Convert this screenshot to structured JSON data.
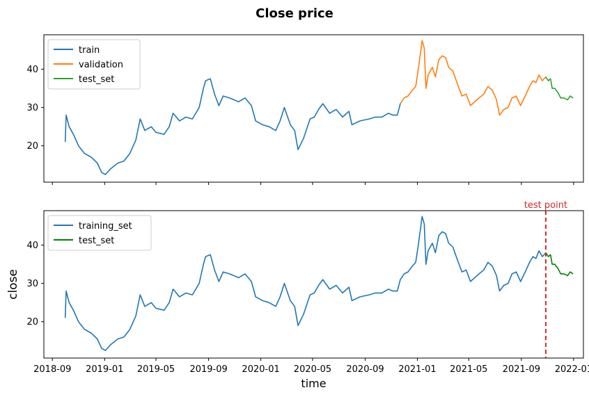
{
  "figure": {
    "title": "Close price"
  },
  "chart_data": [
    {
      "type": "line",
      "title": "",
      "xlabel": "",
      "ylabel": "",
      "x_ticks": [
        "2018-09",
        "2019-01",
        "2019-05",
        "2019-09",
        "2020-01",
        "2020-05",
        "2020-09",
        "2021-01",
        "2021-05",
        "2021-09",
        "2022-01"
      ],
      "x_tick_labels_visible": false,
      "ylim": [
        10.5,
        49
      ],
      "y_ticks": [
        20,
        30,
        40
      ],
      "legend": "top-left",
      "series": [
        {
          "name": "train",
          "color": "#1f77b4",
          "points": [
            [
              "2018-10-01",
              21.0
            ],
            [
              "2018-10-03",
              28.0
            ],
            [
              "2018-10-10",
              25.0
            ],
            [
              "2018-10-20",
              23.0
            ],
            [
              "2018-11-01",
              20.0
            ],
            [
              "2018-11-15",
              18.0
            ],
            [
              "2018-12-01",
              17.0
            ],
            [
              "2018-12-15",
              15.5
            ],
            [
              "2018-12-25",
              13.0
            ],
            [
              "2019-01-03",
              12.5
            ],
            [
              "2019-01-15",
              14.0
            ],
            [
              "2019-02-01",
              15.5
            ],
            [
              "2019-02-15",
              16.0
            ],
            [
              "2019-03-01",
              18.0
            ],
            [
              "2019-03-15",
              21.5
            ],
            [
              "2019-03-25",
              27.0
            ],
            [
              "2019-04-05",
              24.0
            ],
            [
              "2019-04-20",
              25.0
            ],
            [
              "2019-05-01",
              23.5
            ],
            [
              "2019-05-20",
              23.0
            ],
            [
              "2019-06-01",
              25.0
            ],
            [
              "2019-06-10",
              28.5
            ],
            [
              "2019-06-25",
              26.5
            ],
            [
              "2019-07-10",
              27.5
            ],
            [
              "2019-07-25",
              27.0
            ],
            [
              "2019-08-10",
              30.0
            ],
            [
              "2019-08-20",
              35.0
            ],
            [
              "2019-08-25",
              37.0
            ],
            [
              "2019-09-05",
              37.5
            ],
            [
              "2019-09-15",
              33.5
            ],
            [
              "2019-09-25",
              30.5
            ],
            [
              "2019-10-05",
              33.0
            ],
            [
              "2019-10-20",
              32.5
            ],
            [
              "2019-11-10",
              31.5
            ],
            [
              "2019-11-25",
              32.5
            ],
            [
              "2019-12-10",
              30.5
            ],
            [
              "2019-12-20",
              26.5
            ],
            [
              "2020-01-05",
              25.5
            ],
            [
              "2020-01-20",
              25.0
            ],
            [
              "2020-02-05",
              24.0
            ],
            [
              "2020-02-15",
              26.5
            ],
            [
              "2020-02-25",
              30.0
            ],
            [
              "2020-03-10",
              25.5
            ],
            [
              "2020-03-20",
              24.0
            ],
            [
              "2020-03-28",
              19.0
            ],
            [
              "2020-04-10",
              22.0
            ],
            [
              "2020-04-25",
              27.0
            ],
            [
              "2020-05-05",
              27.5
            ],
            [
              "2020-05-15",
              29.5
            ],
            [
              "2020-05-25",
              31.0
            ],
            [
              "2020-06-10",
              28.5
            ],
            [
              "2020-06-25",
              29.5
            ],
            [
              "2020-07-10",
              27.5
            ],
            [
              "2020-07-25",
              29.0
            ],
            [
              "2020-08-01",
              25.5
            ],
            [
              "2020-08-20",
              26.5
            ],
            [
              "2020-09-10",
              27.0
            ],
            [
              "2020-09-25",
              27.5
            ],
            [
              "2020-10-10",
              27.5
            ],
            [
              "2020-10-25",
              28.5
            ],
            [
              "2020-11-05",
              28.0
            ],
            [
              "2020-11-15",
              28.0
            ],
            [
              "2020-11-22",
              31.0
            ]
          ]
        },
        {
          "name": "validation",
          "color": "#ff7f0e",
          "points": [
            [
              "2020-11-22",
              31.0
            ],
            [
              "2020-12-01",
              32.5
            ],
            [
              "2020-12-10",
              33.0
            ],
            [
              "2020-12-20",
              34.5
            ],
            [
              "2020-12-28",
              35.5
            ],
            [
              "2021-01-03",
              40.0
            ],
            [
              "2021-01-08",
              44.0
            ],
            [
              "2021-01-12",
              47.5
            ],
            [
              "2021-01-17",
              45.5
            ],
            [
              "2021-01-21",
              35.0
            ],
            [
              "2021-01-26",
              38.5
            ],
            [
              "2021-02-05",
              40.5
            ],
            [
              "2021-02-12",
              38.0
            ],
            [
              "2021-02-20",
              42.5
            ],
            [
              "2021-02-28",
              43.5
            ],
            [
              "2021-03-08",
              43.0
            ],
            [
              "2021-03-15",
              40.5
            ],
            [
              "2021-03-25",
              39.5
            ],
            [
              "2021-04-05",
              36.0
            ],
            [
              "2021-04-15",
              33.0
            ],
            [
              "2021-04-25",
              33.5
            ],
            [
              "2021-05-05",
              30.5
            ],
            [
              "2021-05-15",
              31.5
            ],
            [
              "2021-05-25",
              32.5
            ],
            [
              "2021-06-05",
              33.5
            ],
            [
              "2021-06-15",
              35.5
            ],
            [
              "2021-06-25",
              34.5
            ],
            [
              "2021-07-05",
              32.0
            ],
            [
              "2021-07-12",
              28.0
            ],
            [
              "2021-07-22",
              29.5
            ],
            [
              "2021-08-01",
              30.0
            ],
            [
              "2021-08-10",
              32.5
            ],
            [
              "2021-08-20",
              33.0
            ],
            [
              "2021-08-30",
              30.5
            ],
            [
              "2021-09-10",
              33.0
            ],
            [
              "2021-09-20",
              35.5
            ],
            [
              "2021-09-28",
              37.0
            ],
            [
              "2021-10-05",
              36.5
            ],
            [
              "2021-10-12",
              38.5
            ],
            [
              "2021-10-20",
              37.0
            ],
            [
              "2021-10-28",
              38.0
            ]
          ]
        },
        {
          "name": "test_set",
          "color": "#2ca02c",
          "points": [
            [
              "2021-10-28",
              38.0
            ],
            [
              "2021-11-03",
              37.0
            ],
            [
              "2021-11-08",
              37.5
            ],
            [
              "2021-11-12",
              35.0
            ],
            [
              "2021-11-18",
              35.0
            ],
            [
              "2021-11-25",
              34.0
            ],
            [
              "2021-12-02",
              32.5
            ],
            [
              "2021-12-10",
              32.5
            ],
            [
              "2021-12-18",
              32.0
            ],
            [
              "2021-12-24",
              33.0
            ],
            [
              "2021-12-31",
              32.5
            ]
          ]
        }
      ]
    },
    {
      "type": "line",
      "title": "",
      "xlabel": "time",
      "ylabel": "close",
      "x_ticks": [
        "2018-09",
        "2019-01",
        "2019-05",
        "2019-09",
        "2020-01",
        "2020-05",
        "2020-09",
        "2021-01",
        "2021-05",
        "2021-09",
        "2022-01"
      ],
      "x_tick_labels_visible": true,
      "ylim": [
        10.5,
        49
      ],
      "y_ticks": [
        20,
        30,
        40
      ],
      "legend": "top-left",
      "annotation": {
        "text": "test point",
        "x": "2021-10-28",
        "color": "#d62728"
      },
      "series": [
        {
          "name": "training_set",
          "color": "#1f77b4",
          "points": [
            [
              "2018-10-01",
              21.0
            ],
            [
              "2018-10-03",
              28.0
            ],
            [
              "2018-10-10",
              25.0
            ],
            [
              "2018-10-20",
              23.0
            ],
            [
              "2018-11-01",
              20.0
            ],
            [
              "2018-11-15",
              18.0
            ],
            [
              "2018-12-01",
              17.0
            ],
            [
              "2018-12-15",
              15.5
            ],
            [
              "2018-12-25",
              13.0
            ],
            [
              "2019-01-03",
              12.5
            ],
            [
              "2019-01-15",
              14.0
            ],
            [
              "2019-02-01",
              15.5
            ],
            [
              "2019-02-15",
              16.0
            ],
            [
              "2019-03-01",
              18.0
            ],
            [
              "2019-03-15",
              21.5
            ],
            [
              "2019-03-25",
              27.0
            ],
            [
              "2019-04-05",
              24.0
            ],
            [
              "2019-04-20",
              25.0
            ],
            [
              "2019-05-01",
              23.5
            ],
            [
              "2019-05-20",
              23.0
            ],
            [
              "2019-06-01",
              25.0
            ],
            [
              "2019-06-10",
              28.5
            ],
            [
              "2019-06-25",
              26.5
            ],
            [
              "2019-07-10",
              27.5
            ],
            [
              "2019-07-25",
              27.0
            ],
            [
              "2019-08-10",
              30.0
            ],
            [
              "2019-08-20",
              35.0
            ],
            [
              "2019-08-25",
              37.0
            ],
            [
              "2019-09-05",
              37.5
            ],
            [
              "2019-09-15",
              33.5
            ],
            [
              "2019-09-25",
              30.5
            ],
            [
              "2019-10-05",
              33.0
            ],
            [
              "2019-10-20",
              32.5
            ],
            [
              "2019-11-10",
              31.5
            ],
            [
              "2019-11-25",
              32.5
            ],
            [
              "2019-12-10",
              30.5
            ],
            [
              "2019-12-20",
              26.5
            ],
            [
              "2020-01-05",
              25.5
            ],
            [
              "2020-01-20",
              25.0
            ],
            [
              "2020-02-05",
              24.0
            ],
            [
              "2020-02-15",
              26.5
            ],
            [
              "2020-02-25",
              30.0
            ],
            [
              "2020-03-10",
              25.5
            ],
            [
              "2020-03-20",
              24.0
            ],
            [
              "2020-03-28",
              19.0
            ],
            [
              "2020-04-10",
              22.0
            ],
            [
              "2020-04-25",
              27.0
            ],
            [
              "2020-05-05",
              27.5
            ],
            [
              "2020-05-15",
              29.5
            ],
            [
              "2020-05-25",
              31.0
            ],
            [
              "2020-06-10",
              28.5
            ],
            [
              "2020-06-25",
              29.5
            ],
            [
              "2020-07-10",
              27.5
            ],
            [
              "2020-07-25",
              29.0
            ],
            [
              "2020-08-01",
              25.5
            ],
            [
              "2020-08-20",
              26.5
            ],
            [
              "2020-09-10",
              27.0
            ],
            [
              "2020-09-25",
              27.5
            ],
            [
              "2020-10-10",
              27.5
            ],
            [
              "2020-10-25",
              28.5
            ],
            [
              "2020-11-05",
              28.0
            ],
            [
              "2020-11-15",
              28.0
            ],
            [
              "2020-11-22",
              31.0
            ],
            [
              "2020-12-01",
              32.5
            ],
            [
              "2020-12-10",
              33.0
            ],
            [
              "2020-12-20",
              34.5
            ],
            [
              "2020-12-28",
              35.5
            ],
            [
              "2021-01-03",
              40.0
            ],
            [
              "2021-01-08",
              44.0
            ],
            [
              "2021-01-12",
              47.5
            ],
            [
              "2021-01-17",
              45.5
            ],
            [
              "2021-01-21",
              35.0
            ],
            [
              "2021-01-26",
              38.5
            ],
            [
              "2021-02-05",
              40.5
            ],
            [
              "2021-02-12",
              38.0
            ],
            [
              "2021-02-20",
              42.5
            ],
            [
              "2021-02-28",
              43.5
            ],
            [
              "2021-03-08",
              43.0
            ],
            [
              "2021-03-15",
              40.5
            ],
            [
              "2021-03-25",
              39.5
            ],
            [
              "2021-04-05",
              36.0
            ],
            [
              "2021-04-15",
              33.0
            ],
            [
              "2021-04-25",
              33.5
            ],
            [
              "2021-05-05",
              30.5
            ],
            [
              "2021-05-15",
              31.5
            ],
            [
              "2021-05-25",
              32.5
            ],
            [
              "2021-06-05",
              33.5
            ],
            [
              "2021-06-15",
              35.5
            ],
            [
              "2021-06-25",
              34.5
            ],
            [
              "2021-07-05",
              32.0
            ],
            [
              "2021-07-12",
              28.0
            ],
            [
              "2021-07-22",
              29.5
            ],
            [
              "2021-08-01",
              30.0
            ],
            [
              "2021-08-10",
              32.5
            ],
            [
              "2021-08-20",
              33.0
            ],
            [
              "2021-08-30",
              30.5
            ],
            [
              "2021-09-10",
              33.0
            ],
            [
              "2021-09-20",
              35.5
            ],
            [
              "2021-09-28",
              37.0
            ],
            [
              "2021-10-05",
              36.5
            ],
            [
              "2021-10-12",
              38.5
            ],
            [
              "2021-10-20",
              37.0
            ],
            [
              "2021-10-28",
              38.0
            ]
          ]
        },
        {
          "name": "test_set",
          "color": "#008000",
          "points": [
            [
              "2021-10-28",
              38.0
            ],
            [
              "2021-11-03",
              37.0
            ],
            [
              "2021-11-08",
              37.5
            ],
            [
              "2021-11-12",
              35.0
            ],
            [
              "2021-11-18",
              35.0
            ],
            [
              "2021-11-25",
              34.0
            ],
            [
              "2021-12-02",
              32.5
            ],
            [
              "2021-12-10",
              32.5
            ],
            [
              "2021-12-18",
              32.0
            ],
            [
              "2021-12-24",
              33.0
            ],
            [
              "2021-12-31",
              32.5
            ]
          ]
        }
      ]
    }
  ]
}
